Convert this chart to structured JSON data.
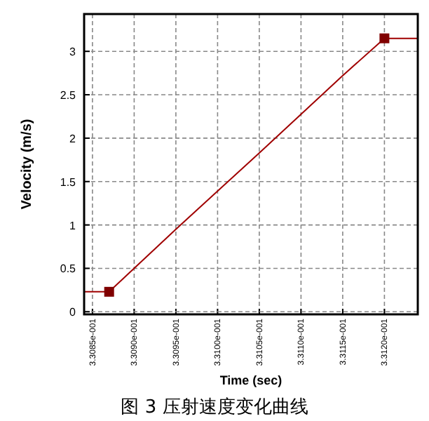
{
  "chart_data": {
    "type": "line",
    "xlabel": "Time (sec)",
    "ylabel": "Velocity (m/s)",
    "annotations": [
      "图 3 压射速度变化曲线"
    ],
    "xlim": [
      0.33084,
      0.33124
    ],
    "ylim": [
      -0.03,
      3.43
    ],
    "xticks": [
      {
        "value": 0.33085,
        "label": "3.3085e-001"
      },
      {
        "value": 0.3309,
        "label": "3.3090e-001"
      },
      {
        "value": 0.33095,
        "label": "3.3095e-001"
      },
      {
        "value": 0.331,
        "label": "3.3100e-001"
      },
      {
        "value": 0.33105,
        "label": "3.3105e-001"
      },
      {
        "value": 0.3311,
        "label": "3.3110e-001"
      },
      {
        "value": 0.33115,
        "label": "3.3115e-001"
      },
      {
        "value": 0.3312,
        "label": "3.3120e-001"
      }
    ],
    "yticks": [
      0,
      0.5,
      1,
      1.5,
      2,
      2.5,
      3
    ],
    "grid": true,
    "series": [
      {
        "type": "line",
        "color": "#a00000",
        "marker": "none",
        "x": [
          0.33084,
          0.33087,
          0.33095,
          0.33105,
          0.33115,
          0.3312,
          0.33124
        ],
        "values": [
          0.23,
          0.23,
          0.95,
          1.83,
          2.72,
          3.15,
          3.15
        ]
      },
      {
        "type": "scatter",
        "color": "#800000",
        "marker": "square",
        "x": [
          0.33087,
          0.3312
        ],
        "values": [
          0.23,
          3.15
        ]
      }
    ]
  }
}
